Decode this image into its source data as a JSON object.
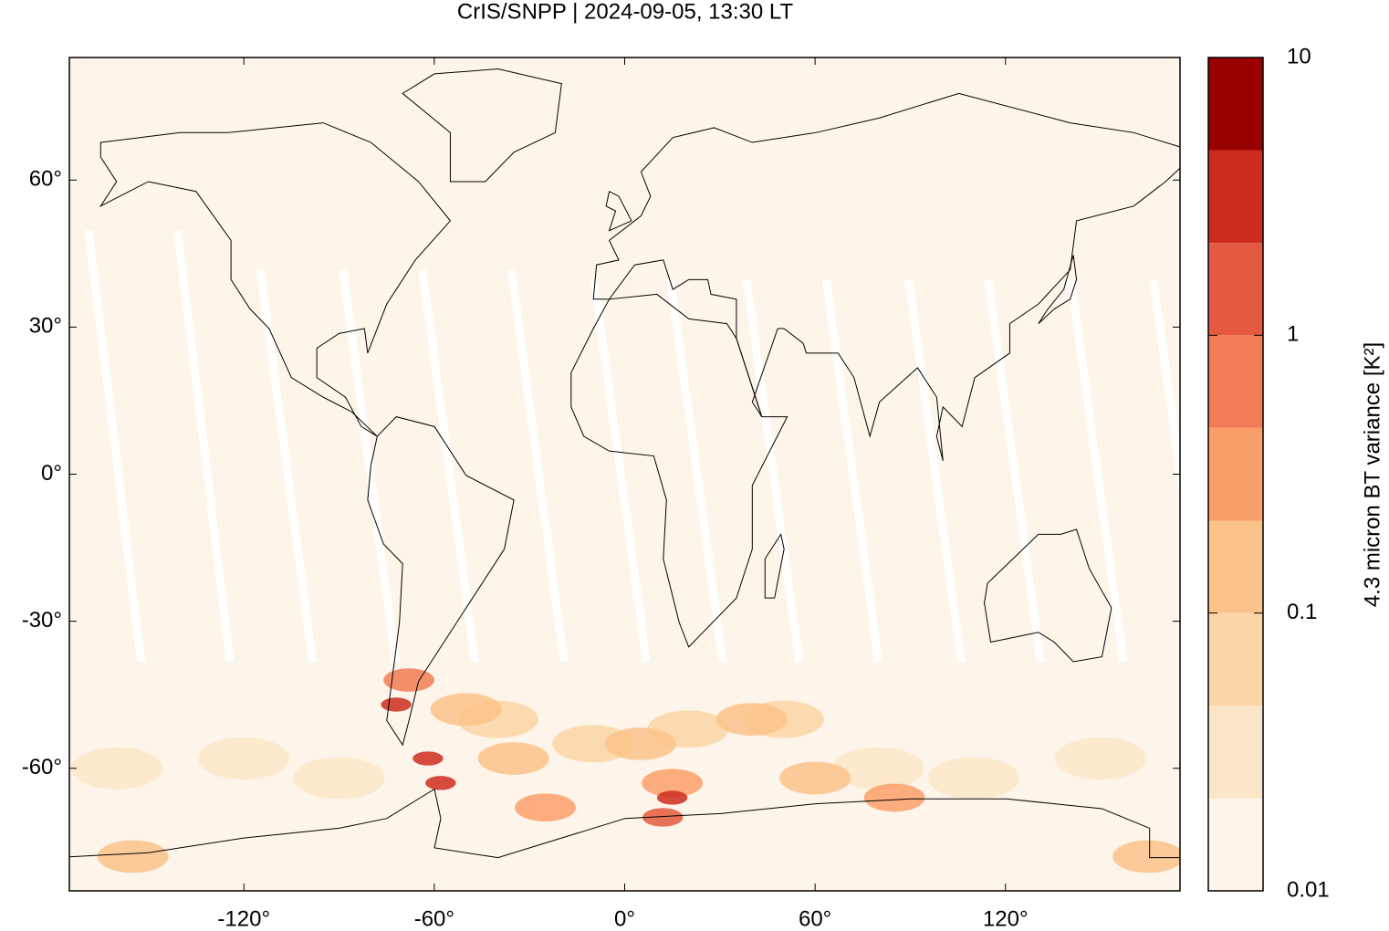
{
  "chart_data": {
    "type": "heatmap",
    "title": "CrIS/SNPP | 2024-09-05, 13:30 LT",
    "xlim": [
      -175,
      175
    ],
    "ylim": [
      -85,
      85
    ],
    "xticks": [
      {
        "value": -120,
        "label": "-120°"
      },
      {
        "value": -60,
        "label": "-60°"
      },
      {
        "value": 0,
        "label": "0°"
      },
      {
        "value": 60,
        "label": "60°"
      },
      {
        "value": 120,
        "label": "120°"
      }
    ],
    "yticks": [
      {
        "value": -60,
        "label": "-60°"
      },
      {
        "value": -30,
        "label": "-30°"
      },
      {
        "value": 0,
        "label": "0°"
      },
      {
        "value": 30,
        "label": "30°"
      },
      {
        "value": 60,
        "label": "60°"
      }
    ],
    "colorbar": {
      "label": "4.3 micron BT variance [K²]",
      "log": true,
      "lim": [
        0.01,
        10
      ],
      "ticks": [
        0.01,
        0.1,
        1,
        10
      ],
      "levels": [
        0.01,
        0.0215,
        0.0464,
        0.1,
        0.215,
        0.464,
        1,
        2.15,
        4.64,
        10
      ],
      "colors": [
        "#fef5ea",
        "#fce6c9",
        "#fcd5a6",
        "#fbc28a",
        "#fb9f6a",
        "#f27c56",
        "#e45a40",
        "#cc2c1e",
        "#990000"
      ]
    },
    "points": {
      "x": [
        -160,
        -120,
        -90,
        -40,
        -10,
        20,
        50,
        80,
        110,
        150,
        -155,
        165,
        -50,
        -35,
        5,
        40,
        60,
        85,
        -25,
        15,
        -68,
        -72,
        -58,
        -62,
        15,
        12
      ],
      "y": [
        -60,
        -58,
        -62,
        -50,
        -55,
        -52,
        -50,
        -60,
        -62,
        -58,
        -78,
        -78,
        -48,
        -58,
        -55,
        -50,
        -62,
        -66,
        -68,
        -63,
        -42,
        -47,
        -63,
        -58,
        -66,
        -70
      ],
      "values": [
        0.03,
        0.03,
        0.03,
        0.05,
        0.05,
        0.05,
        0.05,
        0.04,
        0.03,
        0.03,
        0.15,
        0.2,
        0.12,
        0.15,
        0.2,
        0.15,
        0.15,
        0.25,
        0.3,
        0.3,
        0.6,
        2.5,
        2.2,
        3,
        2.5,
        1.2
      ]
    }
  }
}
